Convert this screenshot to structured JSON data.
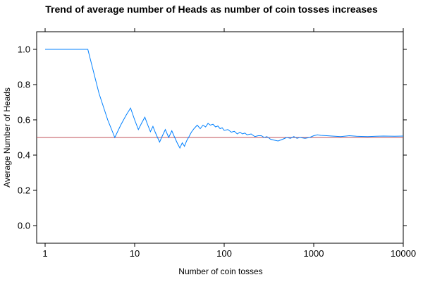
{
  "chart_data": {
    "type": "line",
    "title": "Trend of average number of Heads as number of coin tosses increases",
    "xlabel": "Number of coin tosses",
    "ylabel": "Average Number of Heads",
    "x_scale": "log10",
    "xlim": [
      1,
      10000
    ],
    "ylim": [
      -0.1,
      1.1
    ],
    "x_ticks": [
      1,
      10,
      100,
      1000,
      10000
    ],
    "x_tick_labels": [
      "1",
      "10",
      "100",
      "1000",
      "10000"
    ],
    "y_ticks": [
      0.0,
      0.2,
      0.4,
      0.6,
      0.8,
      1.0
    ],
    "y_tick_labels": [
      "0.0",
      "0.2",
      "0.4",
      "0.6",
      "0.8",
      "1.0"
    ],
    "grid": false,
    "colors": {
      "series": "#0080ff",
      "reference": "#c0505a"
    },
    "reference_line": {
      "y": 0.5
    },
    "series": [
      {
        "x": [
          1,
          2,
          3,
          4,
          5,
          6,
          7,
          8,
          9,
          10,
          11,
          12,
          13,
          14,
          15,
          16,
          17,
          18,
          19,
          20,
          22,
          24,
          26,
          28,
          30,
          32,
          34,
          36,
          38,
          40,
          43,
          46,
          50,
          54,
          58,
          62,
          66,
          70,
          75,
          80,
          85,
          90,
          95,
          100,
          110,
          120,
          130,
          140,
          150,
          160,
          170,
          180,
          200,
          220,
          240,
          260,
          280,
          300,
          330,
          360,
          400,
          450,
          500,
          550,
          600,
          650,
          700,
          800,
          900,
          1000,
          1100,
          1200,
          1400,
          1600,
          2000,
          2500,
          3000,
          4000,
          5000,
          6000,
          8000,
          10000
        ],
        "y": [
          1.0,
          1.0,
          1.0,
          0.75,
          0.6,
          0.5,
          0.571,
          0.625,
          0.667,
          0.6,
          0.545,
          0.583,
          0.615,
          0.571,
          0.533,
          0.563,
          0.529,
          0.5,
          0.474,
          0.5,
          0.545,
          0.5,
          0.538,
          0.5,
          0.467,
          0.44,
          0.47,
          0.45,
          0.48,
          0.5,
          0.53,
          0.55,
          0.57,
          0.55,
          0.57,
          0.56,
          0.58,
          0.57,
          0.575,
          0.56,
          0.565,
          0.55,
          0.555,
          0.54,
          0.545,
          0.53,
          0.535,
          0.52,
          0.53,
          0.52,
          0.525,
          0.515,
          0.52,
          0.505,
          0.51,
          0.51,
          0.5,
          0.505,
          0.49,
          0.485,
          0.48,
          0.49,
          0.5,
          0.495,
          0.505,
          0.495,
          0.5,
          0.495,
          0.5,
          0.51,
          0.515,
          0.512,
          0.51,
          0.508,
          0.505,
          0.51,
          0.507,
          0.505,
          0.507,
          0.508,
          0.507,
          0.508
        ]
      }
    ]
  }
}
